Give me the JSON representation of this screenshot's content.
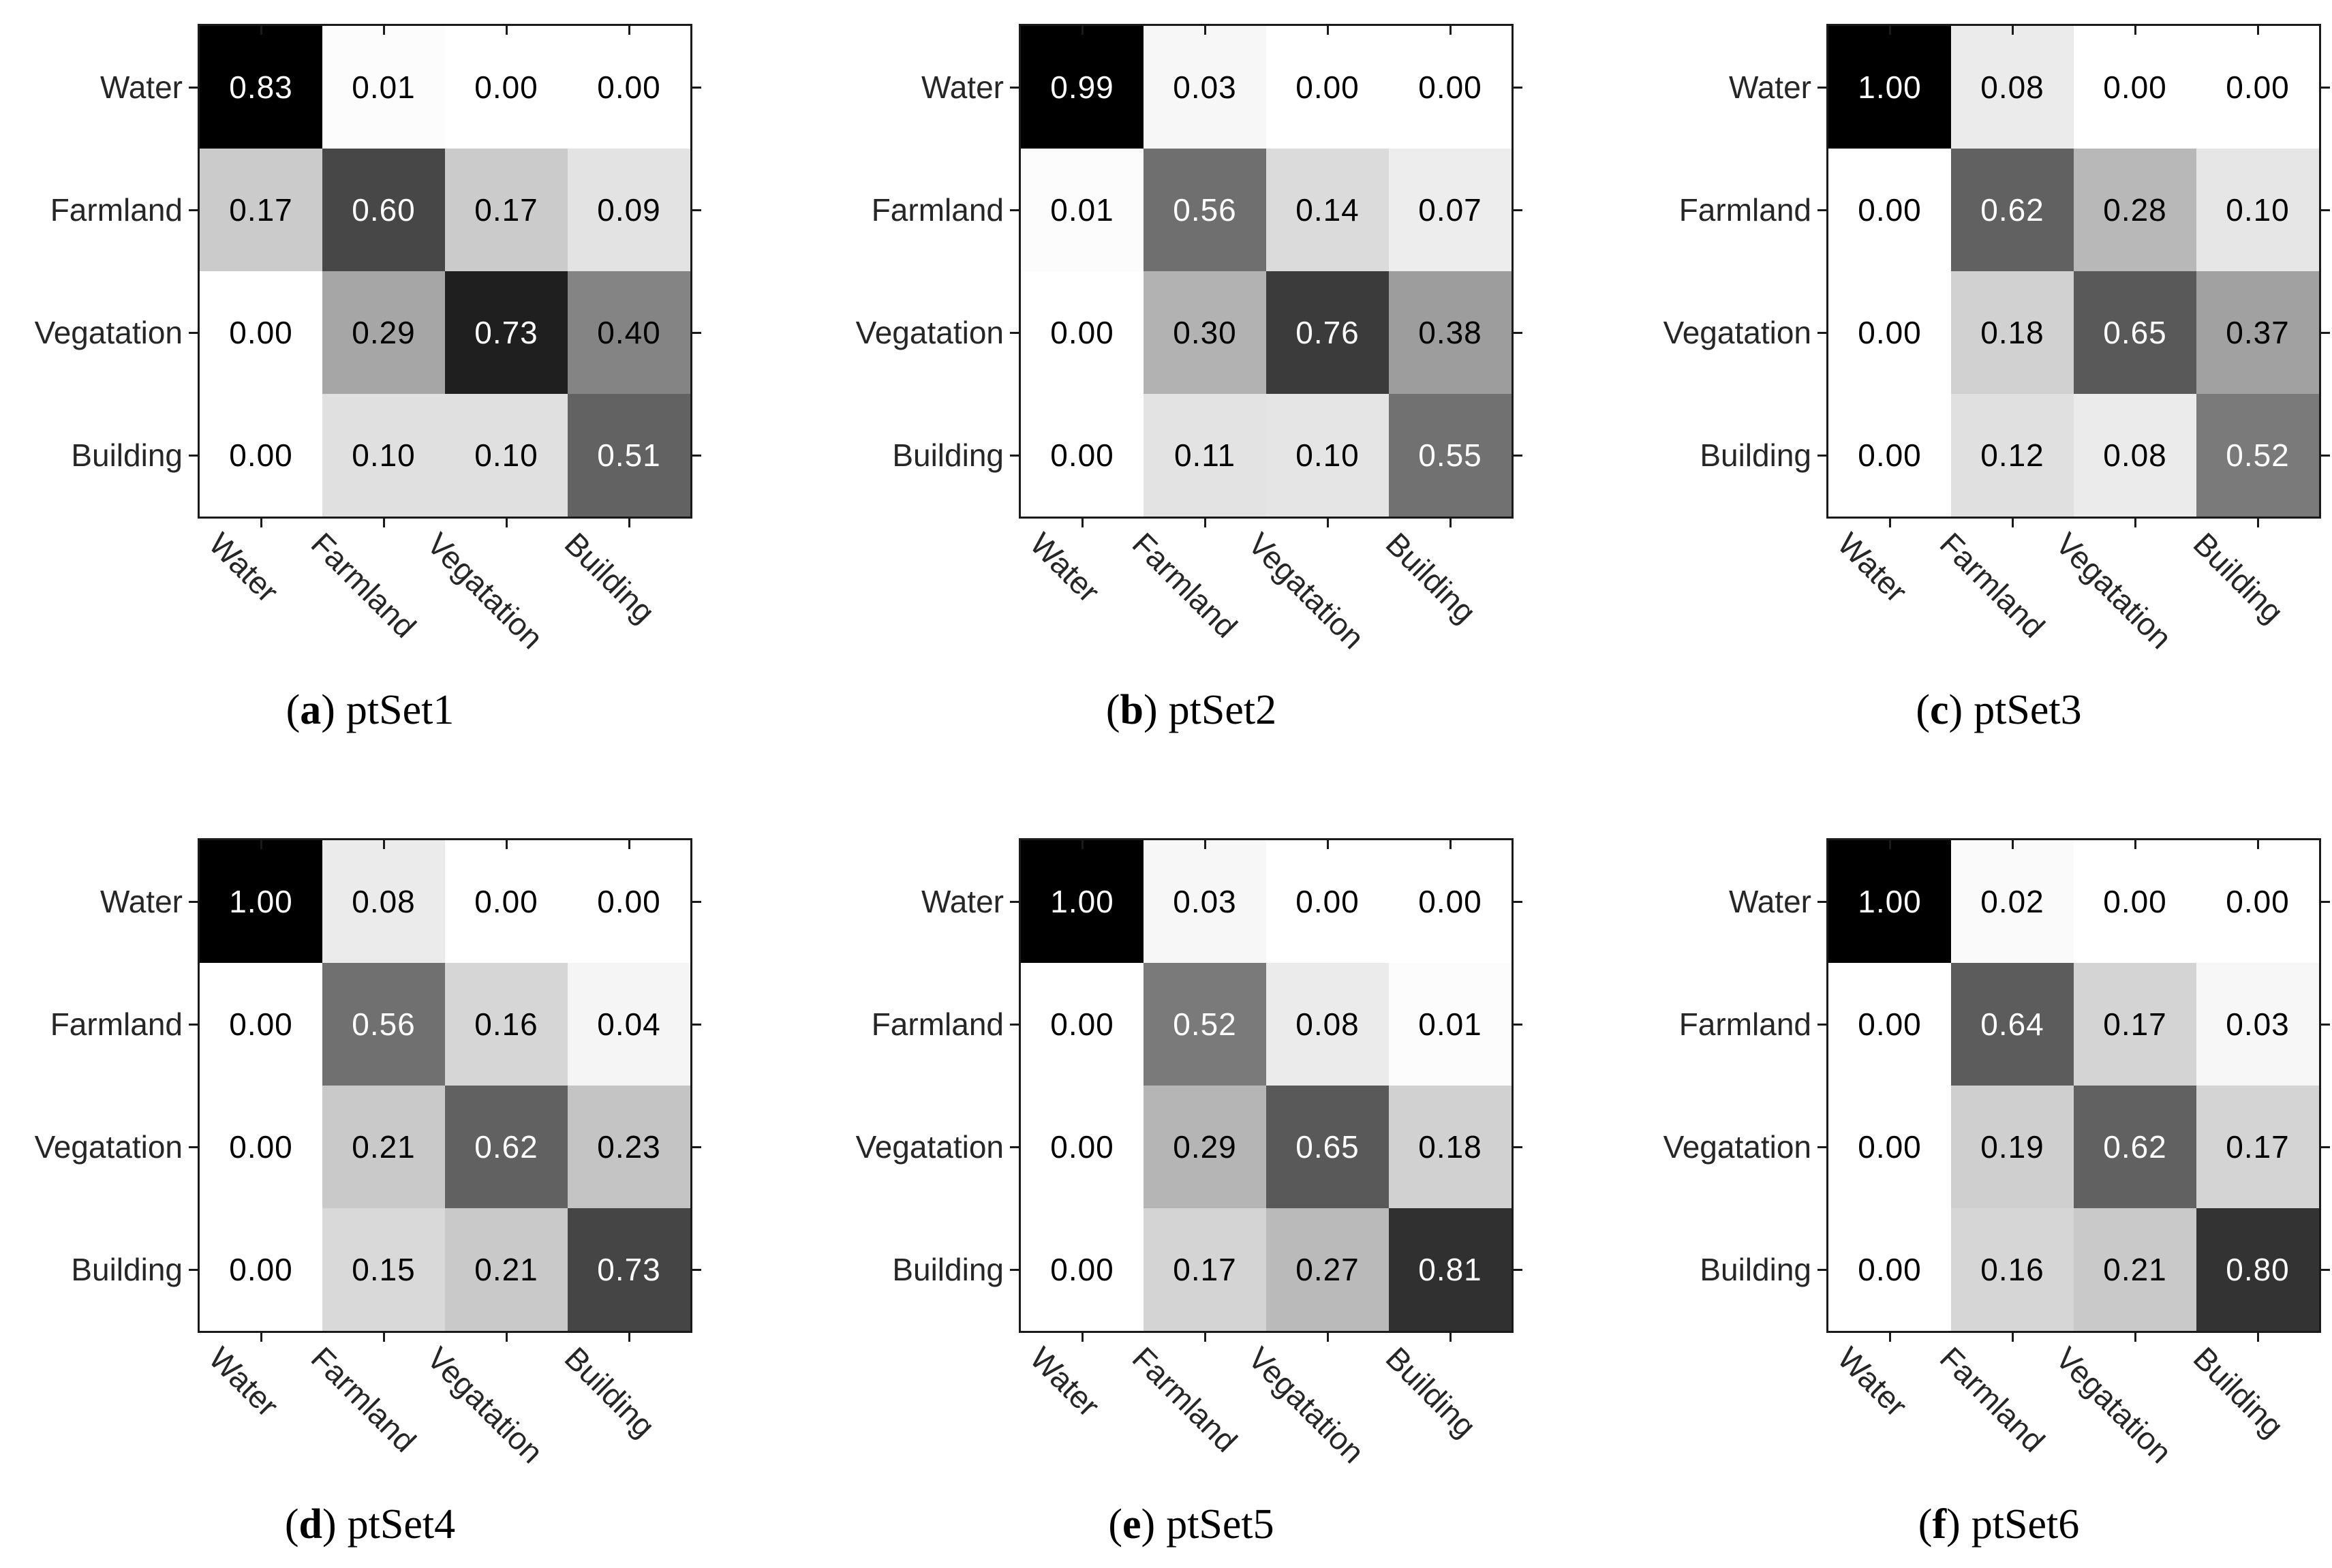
{
  "chart_data": {
    "type": "heatmap",
    "description": "Six normalized confusion matrices (grayscale heatmaps), 2 rows x 3 columns of panels",
    "classes": [
      "Water",
      "Farmland",
      "Vegatation",
      "Building"
    ],
    "value_format": "0.00",
    "color_scale": {
      "low": "#ffffff",
      "high": "#000000",
      "normalization": "per-panel-max",
      "text_light": "#ffffff",
      "text_dark": "#000000"
    },
    "axis": {
      "grid": false,
      "y_tick_side": "left",
      "x_label_rotation_deg": 45
    },
    "caption_prefix": "(",
    "caption_suffix": ")",
    "panels": [
      {
        "key": "a",
        "caption_letter": "a",
        "caption_title": "ptSet1",
        "rows": [
          [
            0.83,
            0.01,
            0.0,
            0.0
          ],
          [
            0.17,
            0.6,
            0.17,
            0.09
          ],
          [
            0.0,
            0.29,
            0.73,
            0.4
          ],
          [
            0.0,
            0.1,
            0.1,
            0.51
          ]
        ]
      },
      {
        "key": "b",
        "caption_letter": "b",
        "caption_title": "ptSet2",
        "rows": [
          [
            0.99,
            0.03,
            0.0,
            0.0
          ],
          [
            0.01,
            0.56,
            0.14,
            0.07
          ],
          [
            0.0,
            0.3,
            0.76,
            0.38
          ],
          [
            0.0,
            0.11,
            0.1,
            0.55
          ]
        ]
      },
      {
        "key": "c",
        "caption_letter": "c",
        "caption_title": "ptSet3",
        "rows": [
          [
            1.0,
            0.08,
            0.0,
            0.0
          ],
          [
            0.0,
            0.62,
            0.28,
            0.1
          ],
          [
            0.0,
            0.18,
            0.65,
            0.37
          ],
          [
            0.0,
            0.12,
            0.08,
            0.52
          ]
        ]
      },
      {
        "key": "d",
        "caption_letter": "d",
        "caption_title": "ptSet4",
        "rows": [
          [
            1.0,
            0.08,
            0.0,
            0.0
          ],
          [
            0.0,
            0.56,
            0.16,
            0.04
          ],
          [
            0.0,
            0.21,
            0.62,
            0.23
          ],
          [
            0.0,
            0.15,
            0.21,
            0.73
          ]
        ]
      },
      {
        "key": "e",
        "caption_letter": "e",
        "caption_title": "ptSet5",
        "rows": [
          [
            1.0,
            0.03,
            0.0,
            0.0
          ],
          [
            0.0,
            0.52,
            0.08,
            0.01
          ],
          [
            0.0,
            0.29,
            0.65,
            0.18
          ],
          [
            0.0,
            0.17,
            0.27,
            0.81
          ]
        ]
      },
      {
        "key": "f",
        "caption_letter": "f",
        "caption_title": "ptSet6",
        "rows": [
          [
            1.0,
            0.02,
            0.0,
            0.0
          ],
          [
            0.0,
            0.64,
            0.17,
            0.03
          ],
          [
            0.0,
            0.19,
            0.62,
            0.17
          ],
          [
            0.0,
            0.16,
            0.21,
            0.8
          ]
        ]
      }
    ]
  }
}
